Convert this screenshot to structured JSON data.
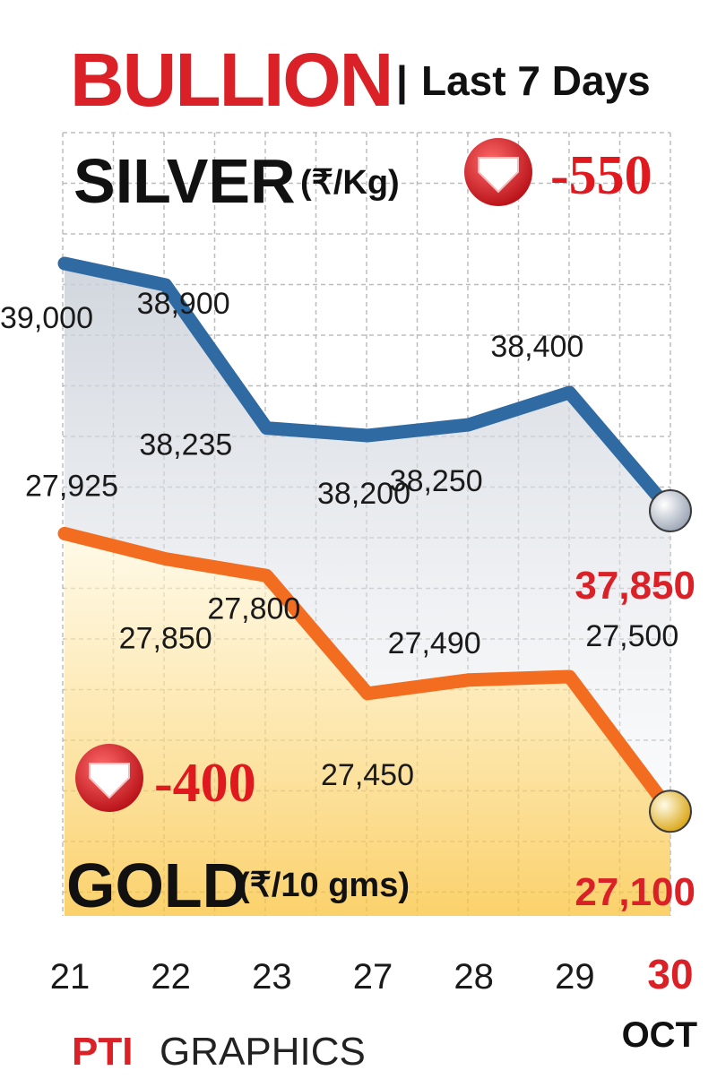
{
  "header": {
    "title": "BULLION",
    "separator": "|",
    "subtitle": "Last 7 Days"
  },
  "silver": {
    "name": "SILVER",
    "unit": "(₹/Kg)",
    "change": "-550",
    "final_label": "37,850"
  },
  "gold": {
    "name": "GOLD",
    "unit": "(₹/10 gms)",
    "change": "-400",
    "final_label": "27,100"
  },
  "month_label": "OCT",
  "footer": {
    "logo": "PTI",
    "credit": "GRAPHICS"
  },
  "colors": {
    "title_red": "#d92127",
    "silver_line": "#2f6aa3",
    "gold_line": "#f26d1f",
    "grid": "#b9b9b9",
    "down_badge": "#e0191f"
  },
  "chart_data": [
    {
      "type": "line",
      "categories": [
        "21",
        "22",
        "23",
        "27",
        "28",
        "29",
        "30"
      ],
      "series": [
        {
          "name": "SILVER",
          "values": [
            39000,
            38900,
            38235,
            38200,
            38250,
            38400,
            37850
          ]
        }
      ],
      "value_labels": [
        "39,000",
        "38,900",
        "38,235",
        "38,200",
        "38,250",
        "38,400",
        "37,850"
      ],
      "ylabel": "(₹/Kg)",
      "ylim": [
        37800,
        39050
      ],
      "grid": true
    },
    {
      "type": "line",
      "categories": [
        "21",
        "22",
        "23",
        "27",
        "28",
        "29",
        "30"
      ],
      "series": [
        {
          "name": "GOLD",
          "values": [
            27925,
            27850,
            27800,
            27450,
            27490,
            27500,
            27100
          ]
        }
      ],
      "value_labels": [
        "27,925",
        "27,850",
        "27,800",
        "27,450",
        "27,490",
        "27,500",
        "27,100"
      ],
      "ylabel": "(₹/10 gms)",
      "ylim": [
        27050,
        27950
      ],
      "grid": true
    }
  ]
}
